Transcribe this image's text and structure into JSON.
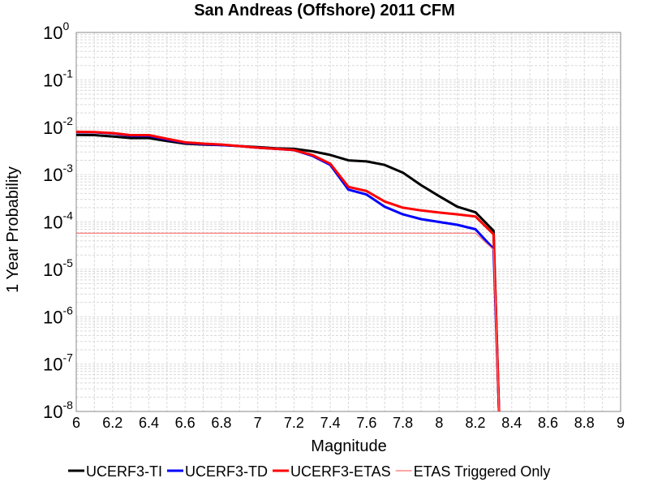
{
  "chart_data": {
    "type": "line",
    "title": "San Andreas (Offshore) 2011 CFM",
    "xlabel": "Magnitude",
    "ylabel": "1 Year Probability",
    "xlim": [
      6,
      9
    ],
    "ylim": [
      1e-08,
      1
    ],
    "yscale": "log",
    "grid": true,
    "legend_position": "bottom",
    "x_ticks": [
      "6",
      "6.2",
      "6.4",
      "6.6",
      "6.8",
      "7",
      "7.2",
      "7.4",
      "7.6",
      "7.8",
      "8",
      "8.2",
      "8.4",
      "8.6",
      "8.8",
      "9"
    ],
    "y_ticks": [
      {
        "base": "10",
        "exp": "0"
      },
      {
        "base": "10",
        "exp": "-1"
      },
      {
        "base": "10",
        "exp": "-2"
      },
      {
        "base": "10",
        "exp": "-3"
      },
      {
        "base": "10",
        "exp": "-4"
      },
      {
        "base": "10",
        "exp": "-5"
      },
      {
        "base": "10",
        "exp": "-6"
      },
      {
        "base": "10",
        "exp": "-7"
      },
      {
        "base": "10",
        "exp": "-8"
      }
    ],
    "series": [
      {
        "name": "UCERF3-TI",
        "color": "#000000",
        "line_width": 3,
        "x": [
          6.0,
          6.1,
          6.2,
          6.3,
          6.4,
          6.5,
          6.6,
          6.7,
          6.8,
          6.9,
          7.0,
          7.1,
          7.2,
          7.3,
          7.4,
          7.5,
          7.6,
          7.7,
          7.8,
          7.9,
          8.0,
          8.1,
          8.2,
          8.3,
          8.33
        ],
        "y": [
          0.0069,
          0.0068,
          0.0064,
          0.0059,
          0.0059,
          0.0051,
          0.0045,
          0.0043,
          0.0042,
          0.004,
          0.0038,
          0.0036,
          0.0035,
          0.0031,
          0.0026,
          0.002,
          0.0019,
          0.0016,
          0.0011,
          0.0006,
          0.00035,
          0.00021,
          0.00016,
          6.5e-05,
          1e-08
        ]
      },
      {
        "name": "UCERF3-TD",
        "color": "#0000ff",
        "line_width": 3,
        "x": [
          6.0,
          6.1,
          6.2,
          6.3,
          6.4,
          6.5,
          6.6,
          6.7,
          6.8,
          6.9,
          7.0,
          7.1,
          7.2,
          7.3,
          7.4,
          7.5,
          7.6,
          7.7,
          7.8,
          7.9,
          8.0,
          8.1,
          8.2,
          8.3,
          8.33
        ],
        "y": [
          0.0079,
          0.0078,
          0.0074,
          0.0066,
          0.0066,
          0.0055,
          0.0047,
          0.0044,
          0.0042,
          0.004,
          0.0037,
          0.0035,
          0.0033,
          0.0025,
          0.0016,
          0.00048,
          0.00038,
          0.00021,
          0.000145,
          0.000115,
          0.0001,
          8.7e-05,
          7e-05,
          2.7e-05,
          1e-08
        ]
      },
      {
        "name": "UCERF3-ETAS",
        "color": "#ff0000",
        "line_width": 3,
        "x": [
          6.0,
          6.1,
          6.2,
          6.3,
          6.4,
          6.5,
          6.6,
          6.7,
          6.8,
          6.9,
          7.0,
          7.1,
          7.2,
          7.3,
          7.4,
          7.5,
          7.6,
          7.7,
          7.8,
          7.9,
          8.0,
          8.1,
          8.2,
          8.3,
          8.33
        ],
        "y": [
          0.008,
          0.0079,
          0.0075,
          0.0068,
          0.0068,
          0.0057,
          0.0048,
          0.0045,
          0.0043,
          0.004,
          0.0037,
          0.0035,
          0.0033,
          0.0026,
          0.0017,
          0.00055,
          0.00045,
          0.00027,
          0.0002,
          0.000175,
          0.000158,
          0.000145,
          0.00013,
          5.5e-05,
          1e-08
        ]
      },
      {
        "name": "ETAS Triggered Only",
        "color": "#ff7070",
        "line_width": 1.2,
        "x": [
          6.0,
          8.2,
          8.3,
          8.33
        ],
        "y": [
          5.8e-05,
          5.8e-05,
          2.6e-05,
          1e-08
        ]
      }
    ]
  }
}
